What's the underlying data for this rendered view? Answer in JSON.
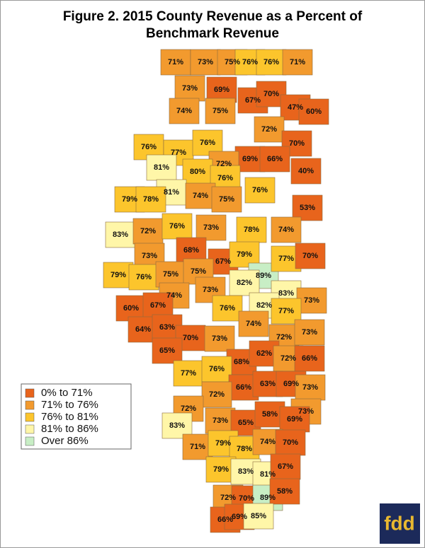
{
  "title_lines": [
    "Figure 2. 2015 County Revenue as a Percent of",
    "Benchmark Revenue"
  ],
  "legend": [
    {
      "label": "0% to 71%",
      "color": "#e8641c"
    },
    {
      "label": "71% to 76%",
      "color": "#f29a2e"
    },
    {
      "label": "76% to 81%",
      "color": "#fcc52c"
    },
    {
      "label": "81% to 86%",
      "color": "#fff6a8"
    },
    {
      "label": "Over 86%",
      "color": "#c8eec5"
    }
  ],
  "counties": [
    {
      "label": "71%",
      "color": "#f29a2e"
    },
    {
      "label": "73%",
      "color": "#f29a2e"
    },
    {
      "label": "75%",
      "color": "#f29a2e"
    },
    {
      "label": "76%",
      "color": "#fcc52c"
    },
    {
      "label": "76%",
      "color": "#fcc52c"
    },
    {
      "label": "71%",
      "color": "#f29a2e"
    },
    {
      "label": "73%",
      "color": "#f29a2e"
    },
    {
      "label": "69%",
      "color": "#e8641c"
    },
    {
      "label": "67%",
      "color": "#e8641c"
    },
    {
      "label": "70%",
      "color": "#e8641c"
    },
    {
      "label": "47%",
      "color": "#e8641c"
    },
    {
      "label": "60%",
      "color": "#e8641c"
    },
    {
      "label": "74%",
      "color": "#f29a2e"
    },
    {
      "label": "75%",
      "color": "#f29a2e"
    },
    {
      "label": "72%",
      "color": "#f29a2e"
    },
    {
      "label": "70%",
      "color": "#e8641c"
    },
    {
      "label": "76%",
      "color": "#fcc52c"
    },
    {
      "label": "77%",
      "color": "#fcc52c"
    },
    {
      "label": "76%",
      "color": "#fcc52c"
    },
    {
      "label": "81%",
      "color": "#fff6a8"
    },
    {
      "label": "69%",
      "color": "#e8641c"
    },
    {
      "label": "66%",
      "color": "#e8641c"
    },
    {
      "label": "72%",
      "color": "#f29a2e"
    },
    {
      "label": "80%",
      "color": "#fcc52c"
    },
    {
      "label": "40%",
      "color": "#e8641c"
    },
    {
      "label": "81%",
      "color": "#fff6a8"
    },
    {
      "label": "76%",
      "color": "#fcc52c"
    },
    {
      "label": "74%",
      "color": "#f29a2e"
    },
    {
      "label": "79%",
      "color": "#fcc52c"
    },
    {
      "label": "78%",
      "color": "#fcc52c"
    },
    {
      "label": "75%",
      "color": "#f29a2e"
    },
    {
      "label": "76%",
      "color": "#fcc52c"
    },
    {
      "label": "53%",
      "color": "#e8641c"
    },
    {
      "label": "83%",
      "color": "#fff6a8"
    },
    {
      "label": "72%",
      "color": "#f29a2e"
    },
    {
      "label": "76%",
      "color": "#fcc52c"
    },
    {
      "label": "73%",
      "color": "#f29a2e"
    },
    {
      "label": "78%",
      "color": "#fcc52c"
    },
    {
      "label": "74%",
      "color": "#f29a2e"
    },
    {
      "label": "73%",
      "color": "#f29a2e"
    },
    {
      "label": "68%",
      "color": "#e8641c"
    },
    {
      "label": "67%",
      "color": "#e8641c"
    },
    {
      "label": "79%",
      "color": "#fcc52c"
    },
    {
      "label": "89%",
      "color": "#c8eec5"
    },
    {
      "label": "77%",
      "color": "#fcc52c"
    },
    {
      "label": "70%",
      "color": "#e8641c"
    },
    {
      "label": "79%",
      "color": "#fcc52c"
    },
    {
      "label": "76%",
      "color": "#fcc52c"
    },
    {
      "label": "75%",
      "color": "#f29a2e"
    },
    {
      "label": "75%",
      "color": "#f29a2e"
    },
    {
      "label": "82%",
      "color": "#fff6a8"
    },
    {
      "label": "83%",
      "color": "#fff6a8"
    },
    {
      "label": "74%",
      "color": "#f29a2e"
    },
    {
      "label": "73%",
      "color": "#f29a2e"
    },
    {
      "label": "73%",
      "color": "#f29a2e"
    },
    {
      "label": "60%",
      "color": "#e8641c"
    },
    {
      "label": "67%",
      "color": "#e8641c"
    },
    {
      "label": "76%",
      "color": "#fcc52c"
    },
    {
      "label": "82%",
      "color": "#fff6a8"
    },
    {
      "label": "77%",
      "color": "#fcc52c"
    },
    {
      "label": "74%",
      "color": "#f29a2e"
    },
    {
      "label": "64%",
      "color": "#e8641c"
    },
    {
      "label": "63%",
      "color": "#e8641c"
    },
    {
      "label": "70%",
      "color": "#e8641c"
    },
    {
      "label": "73%",
      "color": "#f29a2e"
    },
    {
      "label": "72%",
      "color": "#f29a2e"
    },
    {
      "label": "73%",
      "color": "#f29a2e"
    },
    {
      "label": "65%",
      "color": "#e8641c"
    },
    {
      "label": "68%",
      "color": "#e8641c"
    },
    {
      "label": "62%",
      "color": "#e8641c"
    },
    {
      "label": "72%",
      "color": "#f29a2e"
    },
    {
      "label": "66%",
      "color": "#e8641c"
    },
    {
      "label": "77%",
      "color": "#fcc52c"
    },
    {
      "label": "76%",
      "color": "#fcc52c"
    },
    {
      "label": "66%",
      "color": "#e8641c"
    },
    {
      "label": "63%",
      "color": "#e8641c"
    },
    {
      "label": "69%",
      "color": "#e8641c"
    },
    {
      "label": "73%",
      "color": "#f29a2e"
    },
    {
      "label": "72%",
      "color": "#f29a2e"
    },
    {
      "label": "72%",
      "color": "#f29a2e"
    },
    {
      "label": "73%",
      "color": "#f29a2e"
    },
    {
      "label": "83%",
      "color": "#fff6a8"
    },
    {
      "label": "73%",
      "color": "#f29a2e"
    },
    {
      "label": "65%",
      "color": "#e8641c"
    },
    {
      "label": "58%",
      "color": "#e8641c"
    },
    {
      "label": "69%",
      "color": "#e8641c"
    },
    {
      "label": "71%",
      "color": "#f29a2e"
    },
    {
      "label": "79%",
      "color": "#fcc52c"
    },
    {
      "label": "78%",
      "color": "#fcc52c"
    },
    {
      "label": "74%",
      "color": "#f29a2e"
    },
    {
      "label": "70%",
      "color": "#e8641c"
    },
    {
      "label": "79%",
      "color": "#fcc52c"
    },
    {
      "label": "83%",
      "color": "#fff6a8"
    },
    {
      "label": "81%",
      "color": "#fff6a8"
    },
    {
      "label": "67%",
      "color": "#e8641c"
    },
    {
      "label": "72%",
      "color": "#f29a2e"
    },
    {
      "label": "70%",
      "color": "#e8641c"
    },
    {
      "label": "89%",
      "color": "#c8eec5"
    },
    {
      "label": "58%",
      "color": "#e8641c"
    },
    {
      "label": "66%",
      "color": "#e8641c"
    },
    {
      "label": "69%",
      "color": "#e8641c"
    },
    {
      "label": "85%",
      "color": "#fff6a8"
    }
  ],
  "logo": "fdd"
}
